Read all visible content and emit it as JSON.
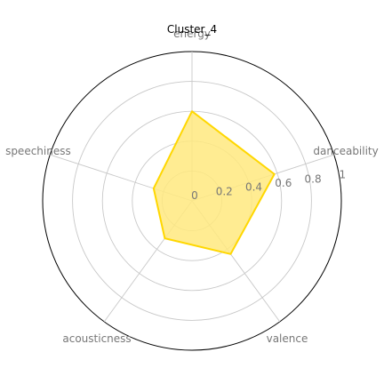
{
  "chart_data": {
    "type": "radar",
    "title": "Cluster_4",
    "axes": [
      "danceability",
      "energy",
      "speechiness",
      "acousticness",
      "valence"
    ],
    "series": [
      {
        "values": [
          0.58,
          0.6,
          0.27,
          0.31,
          0.44
        ],
        "color": "#FFD700"
      }
    ],
    "rlim": [
      0,
      1
    ],
    "r_ticks": [
      0,
      0.2,
      0.4,
      0.6,
      0.8,
      1
    ],
    "r_tick_labels": [
      "0",
      "0.2",
      "0.4",
      "0.6",
      "0.8",
      "1"
    ],
    "grid": true,
    "grid_color": "#c8c8c8",
    "spine_color": "#000000",
    "label_color": "#777777",
    "fill_color": "#FFE97F"
  }
}
